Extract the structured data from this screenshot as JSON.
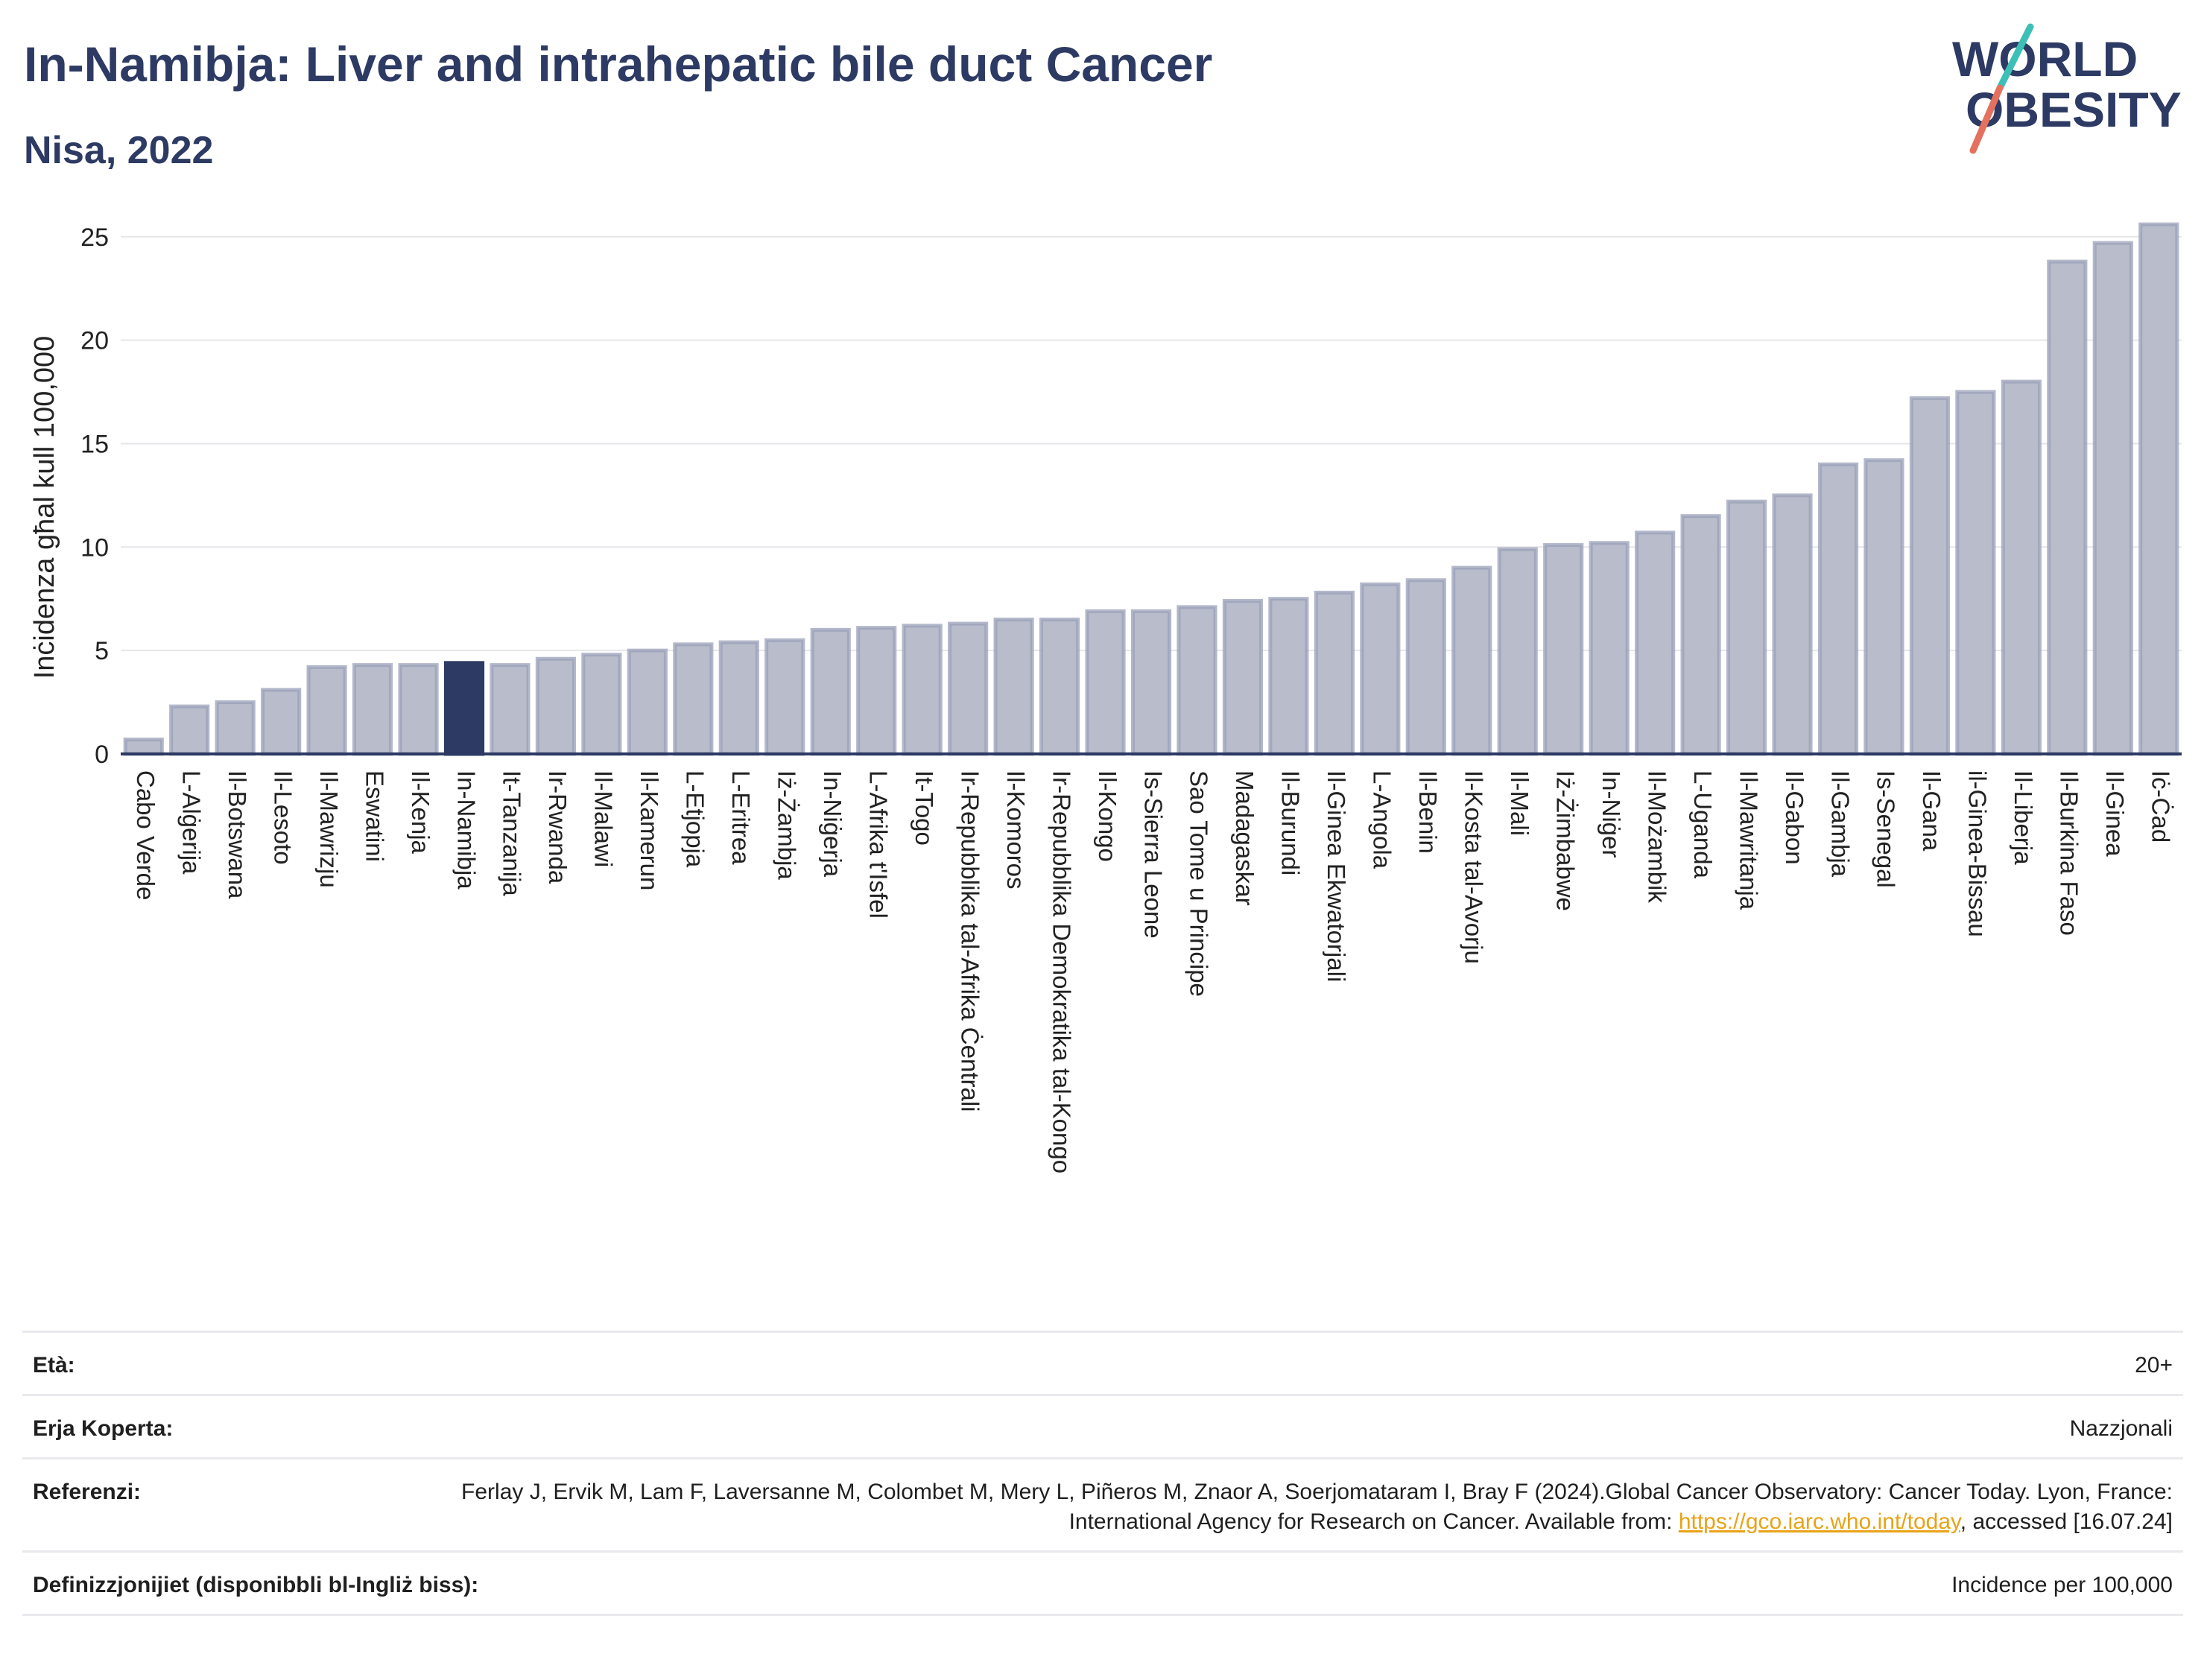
{
  "header": {
    "title": "In-Namibja: Liver and intrahepatic bile duct Cancer",
    "subtitle": "Nisa, 2022"
  },
  "logo": {
    "line1": "WORLD",
    "line2": "OBESITY"
  },
  "chart_data": {
    "type": "bar",
    "ylabel": "Inċidenza għal kull 100,000",
    "ylim": [
      0,
      26
    ],
    "yticks": [
      0,
      5,
      10,
      15,
      20,
      25
    ],
    "grid": true,
    "highlight": "In-Namibja",
    "categories": [
      "Cabo Verde",
      "L-Alġerija",
      "Il-Botswana",
      "Il-Lesoto",
      "Il-Mawrizju",
      "Eswatini",
      "Il-Kenja",
      "In-Namibja",
      "It-Tanzanija",
      "Ir-Rwanda",
      "Il-Malawi",
      "Il-Kamerun",
      "L-Etjopja",
      "L-Eritrea",
      "Iż-Żambja",
      "In-Niġerja",
      "L-Afrika t'Isfel",
      "It-Togo",
      "Ir-Repubblika tal-Afrika Ċentrali",
      "Il-Komoros",
      "Ir-Repubblika Demokratika tal-Kongo",
      "Il-Kongo",
      "Is-Sierra Leone",
      "Sao Tome u Principe",
      "Madagaskar",
      "Il-Burundi",
      "Il-Ginea Ekwatorjali",
      "L-Angola",
      "Il-Benin",
      "Il-Kosta tal-Avorju",
      "Il-Mali",
      "Iż-Żimbabwe",
      "In-Niġer",
      "Il-Możambik",
      "L-Uganda",
      "Il-Mawritanja",
      "Il-Gabon",
      "Il-Gambja",
      "Is-Senegal",
      "Il-Gana",
      "il-Ginea-Bissau",
      "Il-Liberja",
      "Il-Burkina Faso",
      "Il-Ginea",
      "Iċ-Ċad"
    ],
    "values": [
      0.7,
      2.3,
      2.5,
      3.1,
      4.2,
      4.3,
      4.3,
      4.4,
      4.3,
      4.6,
      4.8,
      5.0,
      5.3,
      5.4,
      5.5,
      6.0,
      6.1,
      6.2,
      6.3,
      6.5,
      6.5,
      6.9,
      6.9,
      7.1,
      7.4,
      7.5,
      7.8,
      8.2,
      8.4,
      9.0,
      9.9,
      10.1,
      10.2,
      10.7,
      11.5,
      12.2,
      12.5,
      14.0,
      14.2,
      17.2,
      17.5,
      18.0,
      23.8,
      24.7,
      25.6
    ],
    "colors": {
      "bar": "#b8bccb",
      "bar_edge": "#9aa0b8",
      "highlight": "#2d3a63"
    }
  },
  "meta": {
    "age_label": "Età:",
    "age_value": "20+",
    "area_label": "Erja Koperta:",
    "area_value": "Nazzjonali",
    "ref_label": "Referenzi:",
    "ref_text1": "Ferlay J, Ervik M, Lam F, Laversanne M, Colombet M, Mery L, Piñeros M, Znaor A, Soerjomataram I, Bray F (2024).Global Cancer Observatory: Cancer Today. Lyon, France: International Agency for Research on Cancer. Available from: ",
    "ref_link": "https://gco.iarc.who.int/today",
    "ref_text2": ", accessed [16.07.24]",
    "def_label": "Definizzjonijiet (disponibbli bl-Ingliż biss):",
    "def_value": "Incidence per 100,000"
  }
}
